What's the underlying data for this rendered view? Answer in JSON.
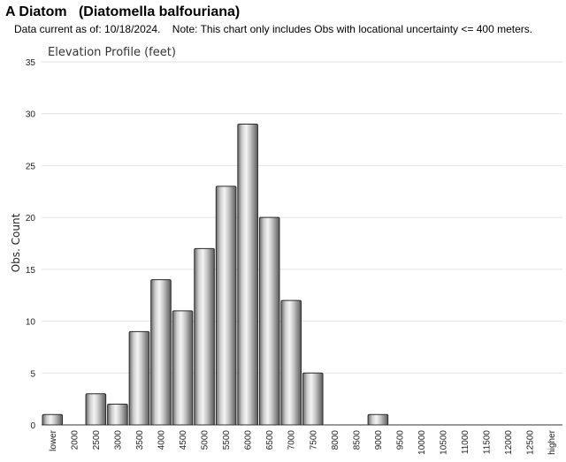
{
  "header": {
    "title": "A Diatom   (Diatomella balfouriana)",
    "subtitle": "Data current as of: 10/18/2024.    Note: This chart only includes Obs with locational uncertainty <= 400 meters."
  },
  "chart_data": {
    "type": "bar",
    "title": "Elevation Profile (feet)",
    "xlabel": "",
    "ylabel": "Obs. Count",
    "ylim": [
      0,
      35
    ],
    "yticks": [
      0,
      5,
      10,
      15,
      20,
      25,
      30,
      35
    ],
    "grid": true,
    "categories": [
      "lower",
      "2000",
      "2500",
      "3000",
      "3500",
      "4000",
      "4500",
      "5000",
      "5500",
      "6000",
      "6500",
      "7000",
      "7500",
      "8000",
      "8500",
      "9000",
      "9500",
      "10000",
      "10500",
      "11000",
      "11500",
      "12000",
      "12500",
      "higher"
    ],
    "values": [
      1,
      0,
      3,
      2,
      9,
      14,
      11,
      17,
      23,
      29,
      20,
      12,
      5,
      0,
      0,
      1,
      0,
      0,
      0,
      0,
      0,
      0,
      0,
      0
    ]
  }
}
